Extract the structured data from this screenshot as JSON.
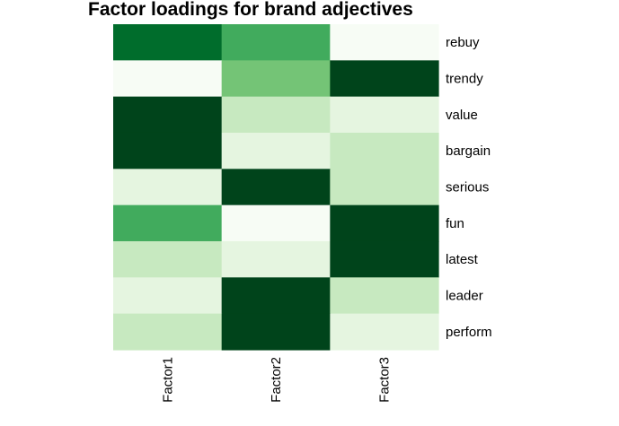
{
  "chart_data": {
    "type": "heatmap",
    "title": "Factor loadings for brand adjectives",
    "columns": [
      "Factor1",
      "Factor2",
      "Factor3"
    ],
    "rows": [
      "rebuy",
      "trendy",
      "value",
      "bargain",
      "serious",
      "fun",
      "latest",
      "leader",
      "perform"
    ],
    "values": [
      [
        0.85,
        0.65,
        0.0
      ],
      [
        0.0,
        0.55,
        1.0
      ],
      [
        1.0,
        0.22,
        0.08
      ],
      [
        1.0,
        0.08,
        0.22
      ],
      [
        0.08,
        1.0,
        0.22
      ],
      [
        0.65,
        0.0,
        1.0
      ],
      [
        0.22,
        0.08,
        1.0
      ],
      [
        0.08,
        1.0,
        0.22
      ],
      [
        0.22,
        1.0,
        0.08
      ]
    ],
    "colormap": [
      "#f7fcf5",
      "#e5f5e0",
      "#c7e9c0",
      "#a1d99b",
      "#74c476",
      "#41ab5d",
      "#238b45",
      "#006d2c",
      "#00441b"
    ],
    "legend": false
  }
}
